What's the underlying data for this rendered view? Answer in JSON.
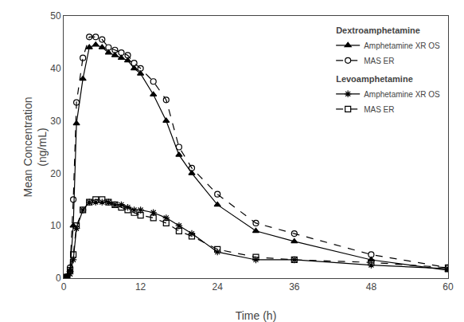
{
  "chart_data": {
    "type": "line",
    "title": "",
    "xlabel": "Time (h)",
    "ylabel": "Mean Concentration\n(ng/mL)",
    "x": [
      0,
      0.5,
      1,
      1.5,
      2,
      3,
      4,
      5,
      6,
      7,
      8,
      9,
      10,
      11,
      12,
      14,
      16,
      18,
      20,
      24,
      30,
      36,
      48,
      60
    ],
    "series": [
      {
        "group": "Dextroamphetamine",
        "name": "Amphetamine XR OS",
        "color": "#000000",
        "marker": "triangle",
        "line_style": "solid",
        "values": [
          0,
          0.3,
          1.5,
          10,
          29.5,
          38,
          44,
          44.5,
          44,
          43,
          42.5,
          42,
          41.5,
          40,
          39,
          35,
          30,
          23.5,
          20,
          14,
          9,
          7,
          3.5,
          1.5
        ]
      },
      {
        "group": "Dextroamphetamine",
        "name": "MAS ER",
        "color": "#000000",
        "marker": "circle-open",
        "line_style": "dashed",
        "values": [
          0,
          0.3,
          2,
          15,
          33.5,
          42,
          46,
          46,
          45.5,
          44,
          43.5,
          43,
          42.5,
          41,
          40,
          37.5,
          34,
          25,
          21,
          16,
          10.5,
          8.5,
          4.5,
          2
        ]
      },
      {
        "group": "Levoamphetamine",
        "name": "Amphetamine XR OS",
        "color": "#000000",
        "marker": "asterisk",
        "line_style": "solid",
        "values": [
          0,
          0.2,
          0.8,
          3.5,
          9.5,
          13,
          14.5,
          14.5,
          14.5,
          14.5,
          14,
          14,
          13.5,
          13,
          13,
          12.5,
          11.5,
          10,
          8.5,
          5,
          3.5,
          3.5,
          2.5,
          1.8
        ]
      },
      {
        "group": "Levoamphetamine",
        "name": "MAS ER",
        "color": "#000000",
        "marker": "square-open",
        "line_style": "dashed",
        "values": [
          0,
          0.2,
          1.5,
          4.5,
          10,
          13,
          14.5,
          15,
          15,
          14.5,
          14,
          13.5,
          13,
          12.5,
          12,
          11.5,
          10.5,
          9,
          8,
          5.5,
          4,
          3.5,
          3.0,
          2
        ]
      }
    ],
    "xlim": [
      0,
      60
    ],
    "ylim": [
      0,
      50
    ],
    "xticks": [
      0,
      12,
      24,
      36,
      48,
      60
    ],
    "yticks": [
      0,
      10,
      20,
      30,
      40,
      50
    ],
    "grid": false,
    "legend": "upper right"
  }
}
